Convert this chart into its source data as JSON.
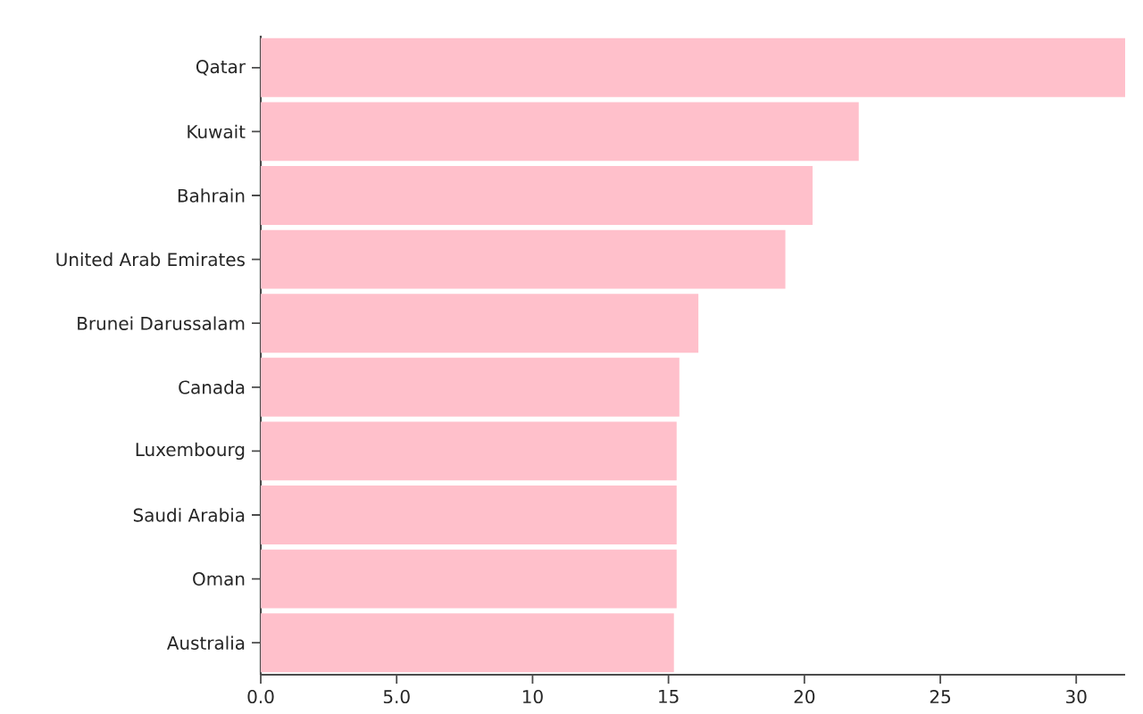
{
  "chart_data": {
    "type": "bar",
    "orientation": "horizontal",
    "categories": [
      "Qatar",
      "Kuwait",
      "Bahrain",
      "United Arab Emirates",
      "Brunei Darussalam",
      "Canada",
      "Luxembourg",
      "Saudi Arabia",
      "Oman",
      "Australia"
    ],
    "values": [
      31.8,
      22.0,
      20.3,
      19.3,
      16.1,
      15.4,
      15.3,
      15.3,
      15.3,
      15.2
    ],
    "color": "#ffc0cb",
    "xlim": [
      0,
      31.8
    ],
    "xticks": [
      {
        "value": 0,
        "label": "0.0"
      },
      {
        "value": 5,
        "label": "5.0"
      },
      10,
      15,
      20,
      25,
      30
    ]
  }
}
